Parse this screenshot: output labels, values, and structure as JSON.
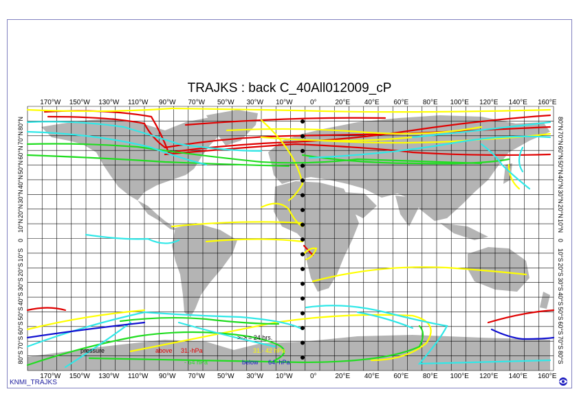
{
  "map": {
    "title": "TRAJKS : back C_40All012009_cP",
    "footer": "KNMI_TRAJKS",
    "top_lon_labels": [
      "170°W",
      "150°W",
      "130°W",
      "110°W",
      "90°W",
      "70°W",
      "50°W",
      "30°W",
      "10°W",
      "0°",
      "20°E",
      "40°E",
      "60°E",
      "80°E",
      "100°E",
      "120°E",
      "140°E",
      "160°E"
    ],
    "bottom_lon_labels": [
      "170°W",
      "150°W",
      "130°W",
      "110°W",
      "90°W",
      "70°W",
      "50°W",
      "30°W",
      "10°W",
      "0°",
      "20°E",
      "40°E",
      "60°E",
      "80°E",
      "100°E",
      "120°E",
      "140°E",
      "160°E"
    ],
    "left_lat_labels": [
      "80°N",
      "70°N",
      "60°N",
      "50°N",
      "40°N",
      "30°N",
      "20°N",
      "10°N",
      "0",
      "10°S",
      "20°S",
      "30°S",
      "40°S",
      "50°S",
      "60°S",
      "70°S",
      "80°S"
    ],
    "right_lat_labels": [
      "80°N",
      "70°N",
      "60°N",
      "50°N",
      "40°N",
      "30°N",
      "20°N",
      "10°N",
      "0",
      "10°S",
      "20°S",
      "30°S",
      "40°S",
      "50°S",
      "60°S",
      "70°S",
      "80°S"
    ],
    "colors": {
      "land": "#b4b4b4",
      "grid": "#000000",
      "frame": "#8080c0",
      "footer": "#2020a0",
      "red": "#e00000",
      "yellow": "#ffff00",
      "green": "#20dd20",
      "cyan": "#30e8e8",
      "blue": "#1010d0"
    },
    "legend": {
      "arrow_note": ">-> = 24 hrs.",
      "pressure_label": "pressure",
      "above_label": "above",
      "above_value": "31.-hPa",
      "yellow_value": "31.-   42 hPa",
      "green_value": "-   64 hPa",
      "below_label": "below",
      "below_value": "64.-hPa"
    }
  }
}
